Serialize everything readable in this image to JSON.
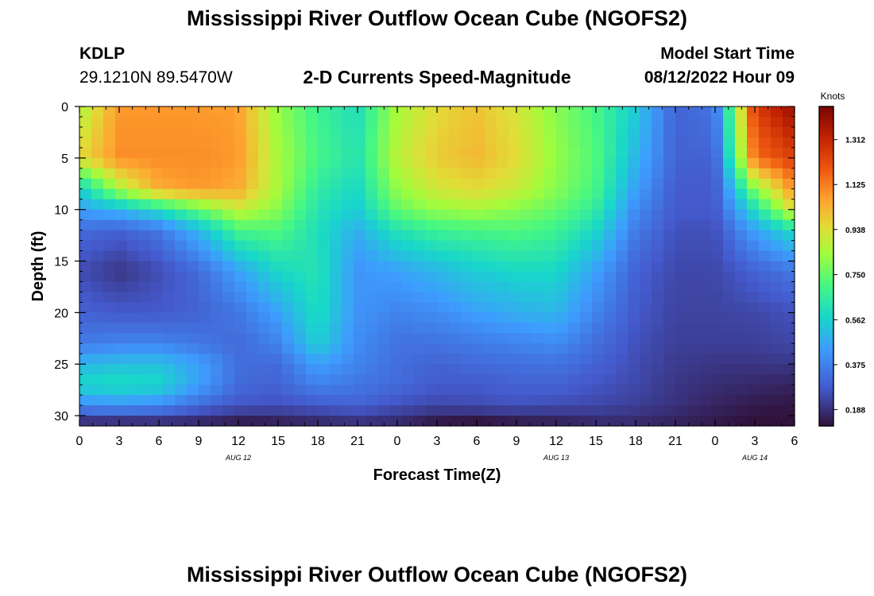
{
  "page": {
    "title": "Mississippi River Outflow Ocean Cube (NGOFS2)",
    "title_repeat": "Mississippi River Outflow Ocean Cube (NGOFS2)"
  },
  "station": {
    "id": "KDLP",
    "coords": "29.1210N  89.5470W"
  },
  "model": {
    "label": "Model Start Time",
    "start": "08/12/2022 Hour 09"
  },
  "chart_data": {
    "type": "heatmap",
    "title": "2-D Currents Speed-Magnitude",
    "xlabel": "Forecast Time(Z)",
    "ylabel": "Depth (ft)",
    "x_ticks": [
      "0",
      "3",
      "6",
      "9",
      "12",
      "15",
      "18",
      "21",
      "0",
      "3",
      "6",
      "9",
      "12",
      "15",
      "18",
      "21",
      "0",
      "3",
      "6"
    ],
    "date_labels": [
      {
        "text": "AUG 12",
        "tick_index": 4
      },
      {
        "text": "AUG 13",
        "tick_index": 12
      },
      {
        "text": "AUG 14",
        "tick_index": 17
      }
    ],
    "y_ticks": [
      "0",
      "5",
      "10",
      "15",
      "20",
      "25",
      "30"
    ],
    "y_range": [
      0,
      31
    ],
    "x_range_hours": [
      0,
      54
    ],
    "colorbar": {
      "unit": "Knots",
      "min": 0.12,
      "max": 1.45,
      "ticks": [
        "1.312",
        "1.125",
        "0.938",
        "0.750",
        "0.562",
        "0.375",
        "0.188"
      ]
    },
    "depths_ft": [
      0,
      5,
      8,
      10,
      12,
      16,
      20,
      23,
      25,
      27,
      29,
      30.5
    ],
    "time_hours": [
      0,
      3,
      6,
      9,
      12,
      15,
      18,
      21,
      24,
      27,
      30,
      33,
      36,
      39,
      42,
      45,
      48,
      51,
      54
    ],
    "speed_knots": [
      [
        0.85,
        1.08,
        1.08,
        1.08,
        1.07,
        0.82,
        0.68,
        0.6,
        0.85,
        0.95,
        1.0,
        0.92,
        0.8,
        0.7,
        0.55,
        0.3,
        0.35,
        1.25,
        1.4
      ],
      [
        0.95,
        1.1,
        1.1,
        1.1,
        1.08,
        0.85,
        0.7,
        0.62,
        0.88,
        0.98,
        1.02,
        0.95,
        0.82,
        0.72,
        0.5,
        0.3,
        0.3,
        1.15,
        1.25
      ],
      [
        0.55,
        0.85,
        1.05,
        1.08,
        1.05,
        0.85,
        0.65,
        0.58,
        0.82,
        0.92,
        0.95,
        0.9,
        0.8,
        0.7,
        0.45,
        0.28,
        0.28,
        0.8,
        1.1
      ],
      [
        0.45,
        0.5,
        0.6,
        0.75,
        0.9,
        0.8,
        0.62,
        0.55,
        0.75,
        0.82,
        0.85,
        0.8,
        0.75,
        0.65,
        0.4,
        0.28,
        0.28,
        0.6,
        0.95
      ],
      [
        0.32,
        0.3,
        0.35,
        0.5,
        0.7,
        0.72,
        0.6,
        0.48,
        0.62,
        0.68,
        0.7,
        0.72,
        0.68,
        0.58,
        0.36,
        0.26,
        0.26,
        0.45,
        0.6
      ],
      [
        0.25,
        0.2,
        0.25,
        0.32,
        0.45,
        0.58,
        0.62,
        0.42,
        0.45,
        0.5,
        0.55,
        0.58,
        0.58,
        0.45,
        0.3,
        0.24,
        0.24,
        0.3,
        0.35
      ],
      [
        0.3,
        0.28,
        0.28,
        0.3,
        0.35,
        0.45,
        0.6,
        0.42,
        0.38,
        0.4,
        0.45,
        0.48,
        0.5,
        0.38,
        0.28,
        0.23,
        0.23,
        0.24,
        0.26
      ],
      [
        0.36,
        0.38,
        0.38,
        0.35,
        0.32,
        0.38,
        0.56,
        0.4,
        0.34,
        0.34,
        0.36,
        0.38,
        0.4,
        0.33,
        0.26,
        0.22,
        0.22,
        0.22,
        0.24
      ],
      [
        0.5,
        0.52,
        0.52,
        0.45,
        0.33,
        0.32,
        0.45,
        0.38,
        0.33,
        0.3,
        0.32,
        0.33,
        0.34,
        0.3,
        0.25,
        0.21,
        0.2,
        0.2,
        0.2
      ],
      [
        0.58,
        0.6,
        0.58,
        0.45,
        0.32,
        0.3,
        0.38,
        0.35,
        0.32,
        0.28,
        0.28,
        0.3,
        0.3,
        0.27,
        0.24,
        0.2,
        0.18,
        0.17,
        0.16
      ],
      [
        0.4,
        0.42,
        0.4,
        0.32,
        0.27,
        0.26,
        0.28,
        0.3,
        0.26,
        0.24,
        0.25,
        0.26,
        0.25,
        0.24,
        0.22,
        0.19,
        0.16,
        0.14,
        0.13
      ],
      [
        0.2,
        0.2,
        0.2,
        0.18,
        0.15,
        0.16,
        0.18,
        0.2,
        0.18,
        0.14,
        0.13,
        0.15,
        0.16,
        0.18,
        0.18,
        0.16,
        0.14,
        0.12,
        0.12
      ]
    ]
  }
}
